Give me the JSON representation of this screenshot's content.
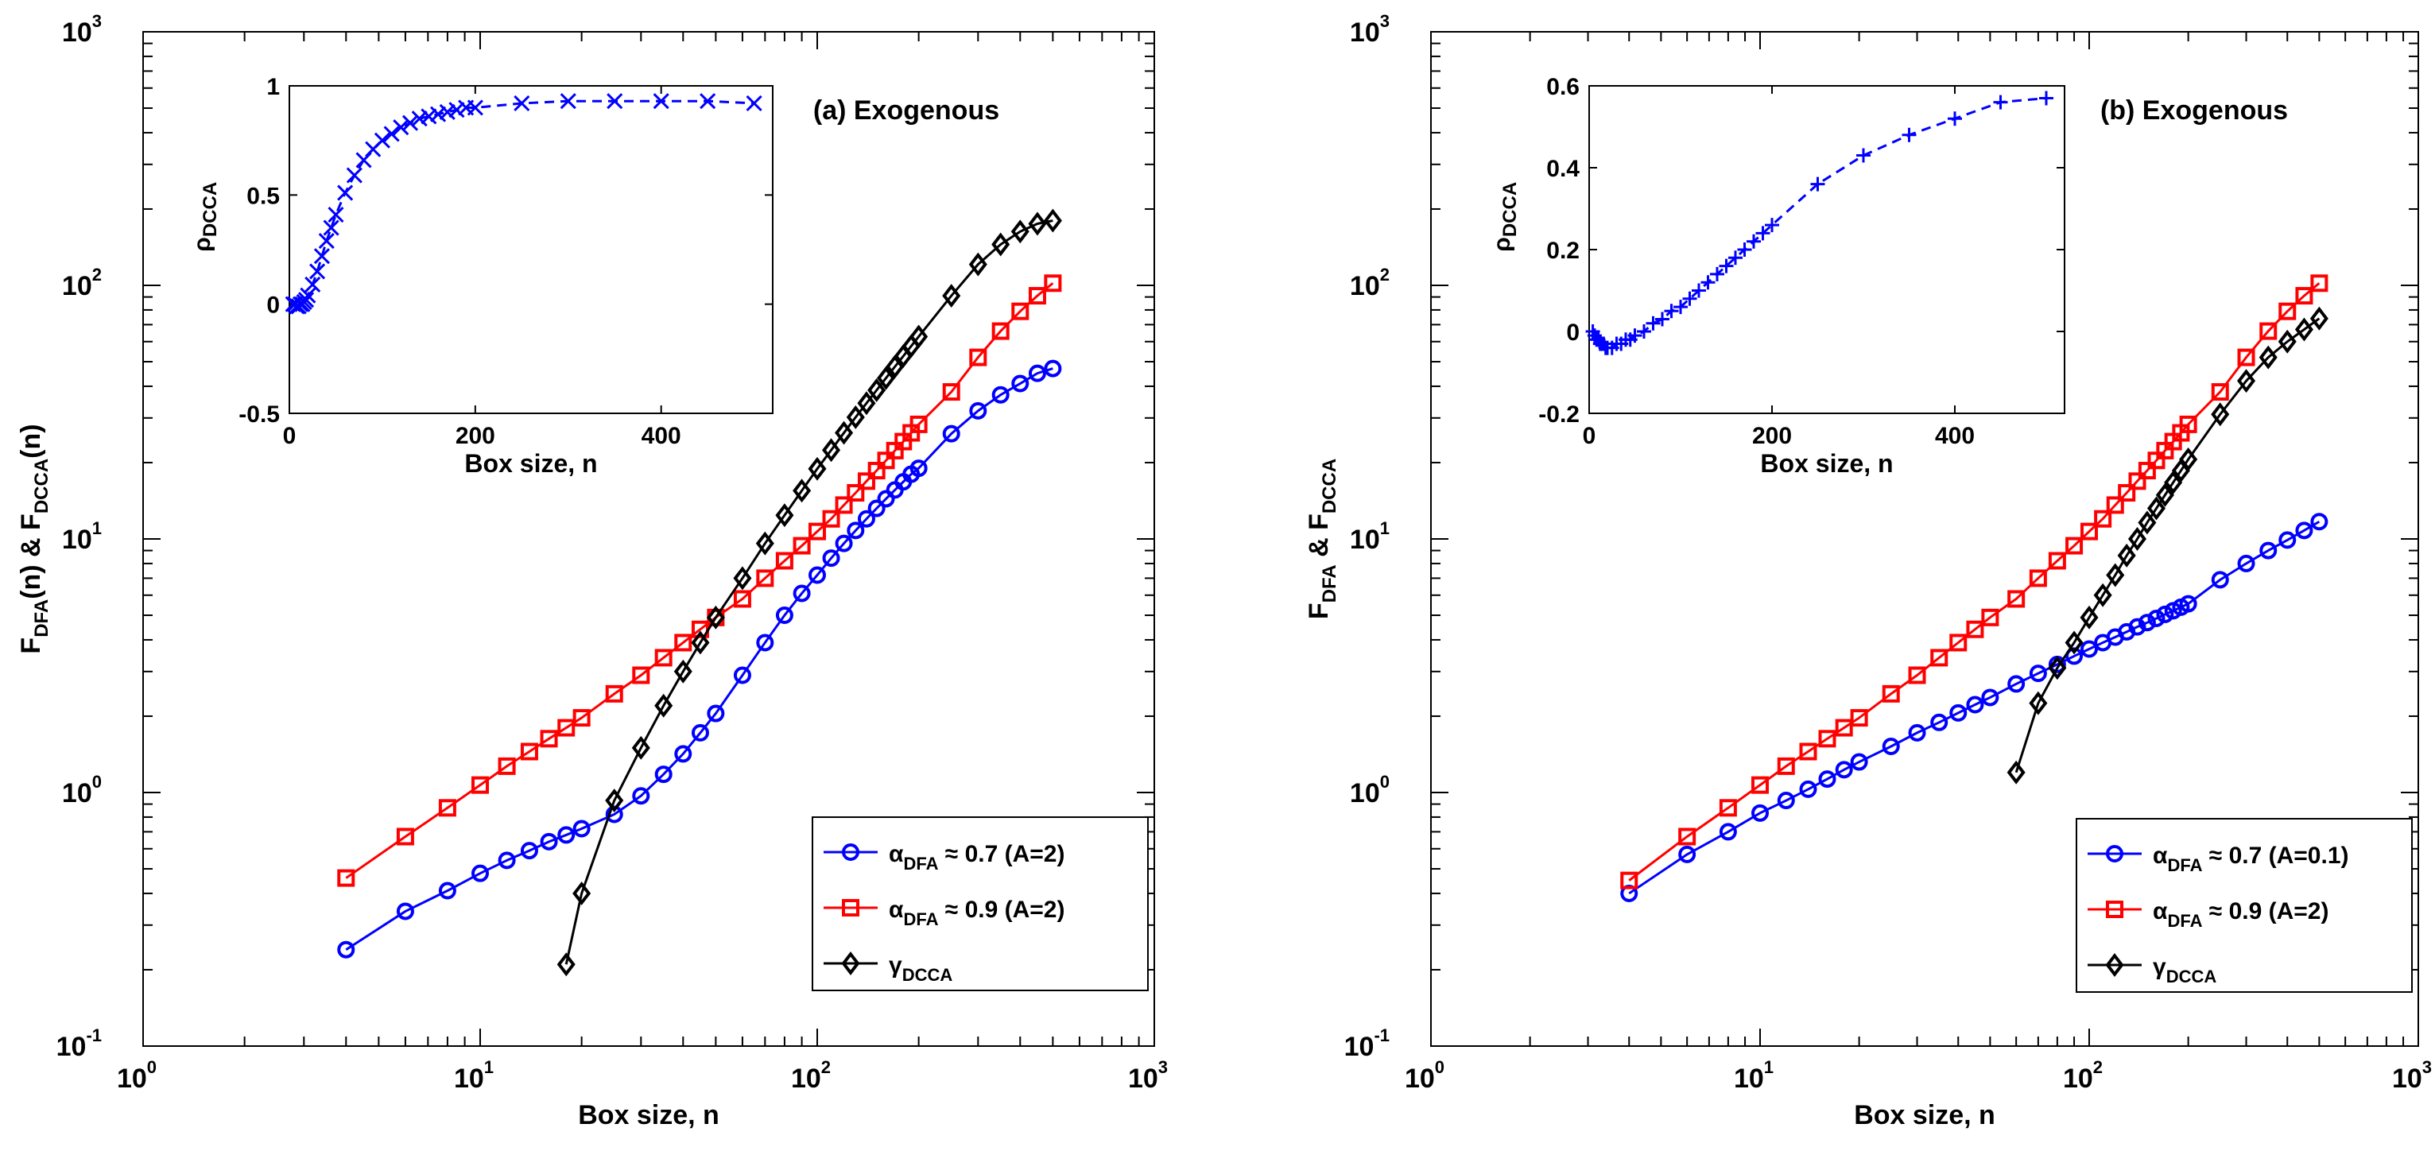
{
  "chart_data": [
    {
      "type": "line",
      "title": "(a) Exogenous",
      "xlabel": "Box size, n",
      "ylabel": {
        "a": "F",
        "b": "DFA",
        "c": "(n) & F",
        "d": "DCCA",
        "e": "(n)"
      },
      "xscale": "log",
      "yscale": "log",
      "xlim": [
        1,
        1000
      ],
      "ylim": [
        0.1,
        1000
      ],
      "x_ticks": [
        {
          "base": "10",
          "exp": "0",
          "v": 1
        },
        {
          "base": "10",
          "exp": "1",
          "v": 10
        },
        {
          "base": "10",
          "exp": "2",
          "v": 100
        },
        {
          "base": "10",
          "exp": "3",
          "v": 1000
        }
      ],
      "y_ticks": [
        {
          "base": "10",
          "exp": "-1",
          "v": 0.1
        },
        {
          "base": "10",
          "exp": "0",
          "v": 1
        },
        {
          "base": "10",
          "exp": "1",
          "v": 10
        },
        {
          "base": "10",
          "exp": "2",
          "v": 100
        },
        {
          "base": "10",
          "exp": "3",
          "v": 1000
        }
      ],
      "legend_position": "bottom-right",
      "series": [
        {
          "name": {
            "sym": "α",
            "sub": "DFA",
            "rest": " ≈ 0.7 (A=2)"
          },
          "color": "#0000ff",
          "marker": "circle",
          "x": [
            4,
            6,
            8,
            10,
            12,
            14,
            16,
            18,
            20,
            25,
            30,
            35,
            40,
            45,
            50,
            60,
            70,
            80,
            90,
            100,
            110,
            120,
            130,
            140,
            150,
            160,
            170,
            180,
            190,
            200,
            250,
            300,
            350,
            400,
            450,
            500
          ],
          "y": [
            0.24,
            0.34,
            0.41,
            0.48,
            0.54,
            0.59,
            0.64,
            0.68,
            0.72,
            0.82,
            0.97,
            1.18,
            1.42,
            1.72,
            2.05,
            2.9,
            3.9,
            5.0,
            6.1,
            7.2,
            8.4,
            9.6,
            10.8,
            12.0,
            13.2,
            14.4,
            15.6,
            16.8,
            18.0,
            19.0,
            26,
            32,
            37,
            41,
            45,
            47
          ]
        },
        {
          "name": {
            "sym": "α",
            "sub": "DFA",
            "rest": " ≈ 0.9 (A=2)"
          },
          "color": "#ff0000",
          "marker": "square",
          "x": [
            4,
            6,
            8,
            10,
            12,
            14,
            16,
            18,
            20,
            25,
            30,
            35,
            40,
            45,
            50,
            60,
            70,
            80,
            90,
            100,
            110,
            120,
            130,
            140,
            150,
            160,
            170,
            180,
            190,
            200,
            250,
            300,
            350,
            400,
            450,
            500
          ],
          "y": [
            0.46,
            0.67,
            0.87,
            1.07,
            1.27,
            1.45,
            1.63,
            1.8,
            1.97,
            2.45,
            2.9,
            3.4,
            3.9,
            4.4,
            4.9,
            5.8,
            7.0,
            8.2,
            9.4,
            10.7,
            12.0,
            13.6,
            15.2,
            16.9,
            18.6,
            20.4,
            22.3,
            24.2,
            26.2,
            28.3,
            38,
            52,
            66,
            79,
            91,
            102
          ]
        },
        {
          "name": {
            "sym": "γ",
            "sub": "DCCA",
            "rest": ""
          },
          "color": "#000000",
          "marker": "diamond",
          "x": [
            18,
            20,
            25,
            30,
            35,
            40,
            45,
            50,
            60,
            70,
            80,
            90,
            100,
            110,
            120,
            130,
            140,
            150,
            160,
            170,
            180,
            190,
            200,
            250,
            300,
            350,
            400,
            450,
            500
          ],
          "y": [
            0.21,
            0.4,
            0.93,
            1.5,
            2.2,
            3.0,
            3.9,
            4.9,
            7.0,
            9.6,
            12.4,
            15.5,
            18.9,
            22.4,
            26.2,
            30.2,
            34.3,
            38.6,
            43.1,
            47.8,
            52.6,
            57.6,
            62.8,
            91,
            121,
            145,
            163,
            175,
            180
          ]
        }
      ],
      "inset": {
        "xlabel": "Box size, n",
        "ylabel": {
          "a": "ρ",
          "b": "DCCA"
        },
        "xlim": [
          0,
          520
        ],
        "ylim": [
          -0.5,
          1
        ],
        "x_ticks": [
          {
            "label": "0",
            "v": 0
          },
          {
            "label": "200",
            "v": 200
          },
          {
            "label": "400",
            "v": 400
          }
        ],
        "y_ticks": [
          {
            "label": "-0.5",
            "v": -0.5
          },
          {
            "label": "0",
            "v": 0
          },
          {
            "label": "0.5",
            "v": 0.5
          },
          {
            "label": "1",
            "v": 1
          }
        ],
        "color": "#0000ff",
        "marker": "x",
        "x": [
          4,
          6,
          8,
          10,
          12,
          14,
          16,
          18,
          20,
          25,
          30,
          35,
          40,
          45,
          50,
          60,
          70,
          80,
          90,
          100,
          110,
          120,
          130,
          140,
          150,
          160,
          170,
          180,
          190,
          200,
          250,
          300,
          350,
          400,
          450,
          500
        ],
        "y": [
          0.0,
          0.0,
          -0.01,
          -0.01,
          0.0,
          0.0,
          0.01,
          0.02,
          0.04,
          0.09,
          0.15,
          0.22,
          0.29,
          0.35,
          0.41,
          0.51,
          0.59,
          0.66,
          0.71,
          0.75,
          0.78,
          0.81,
          0.83,
          0.85,
          0.86,
          0.87,
          0.88,
          0.89,
          0.9,
          0.9,
          0.92,
          0.93,
          0.93,
          0.93,
          0.93,
          0.92
        ]
      }
    },
    {
      "type": "line",
      "title": "(b) Exogenous",
      "xlabel": "Box size, n",
      "ylabel": {
        "a": "F",
        "b": "DFA",
        "c": " & F",
        "d": "DCCA",
        "e": ""
      },
      "xscale": "log",
      "yscale": "log",
      "xlim": [
        1,
        1000
      ],
      "ylim": [
        0.1,
        1000
      ],
      "x_ticks": [
        {
          "base": "10",
          "exp": "0",
          "v": 1
        },
        {
          "base": "10",
          "exp": "1",
          "v": 10
        },
        {
          "base": "10",
          "exp": "2",
          "v": 100
        },
        {
          "base": "10",
          "exp": "3",
          "v": 1000
        }
      ],
      "y_ticks": [
        {
          "base": "10",
          "exp": "-1",
          "v": 0.1
        },
        {
          "base": "10",
          "exp": "0",
          "v": 1
        },
        {
          "base": "10",
          "exp": "1",
          "v": 10
        },
        {
          "base": "10",
          "exp": "2",
          "v": 100
        },
        {
          "base": "10",
          "exp": "3",
          "v": 1000
        }
      ],
      "legend_position": "bottom-right",
      "series": [
        {
          "name": {
            "sym": "α",
            "sub": "DFA",
            "rest": " ≈ 0.7 (A=0.1)"
          },
          "color": "#0000ff",
          "marker": "circle",
          "x": [
            4,
            6,
            8,
            10,
            12,
            14,
            16,
            18,
            20,
            25,
            30,
            35,
            40,
            45,
            50,
            60,
            70,
            80,
            90,
            100,
            110,
            120,
            130,
            140,
            150,
            160,
            170,
            180,
            190,
            200,
            250,
            300,
            350,
            400,
            450,
            500
          ],
          "y": [
            0.4,
            0.57,
            0.7,
            0.83,
            0.93,
            1.03,
            1.13,
            1.23,
            1.32,
            1.52,
            1.72,
            1.89,
            2.06,
            2.22,
            2.37,
            2.68,
            2.95,
            3.2,
            3.45,
            3.68,
            3.9,
            4.1,
            4.3,
            4.5,
            4.68,
            4.86,
            5.04,
            5.21,
            5.38,
            5.55,
            6.9,
            8.0,
            9.0,
            9.9,
            10.8,
            11.7
          ]
        },
        {
          "name": {
            "sym": "α",
            "sub": "DFA",
            "rest": " ≈ 0.9 (A=2)"
          },
          "color": "#ff0000",
          "marker": "square",
          "x": [
            4,
            6,
            8,
            10,
            12,
            14,
            16,
            18,
            20,
            25,
            30,
            35,
            40,
            45,
            50,
            60,
            70,
            80,
            90,
            100,
            110,
            120,
            130,
            140,
            150,
            160,
            170,
            180,
            190,
            200,
            250,
            300,
            350,
            400,
            450,
            500
          ],
          "y": [
            0.45,
            0.67,
            0.87,
            1.07,
            1.27,
            1.45,
            1.63,
            1.8,
            1.97,
            2.45,
            2.9,
            3.4,
            3.9,
            4.4,
            4.9,
            5.8,
            7.0,
            8.2,
            9.4,
            10.7,
            12.0,
            13.6,
            15.2,
            16.9,
            18.6,
            20.4,
            22.3,
            24.2,
            26.2,
            28.3,
            38,
            52,
            66,
            79,
            91,
            102
          ]
        },
        {
          "name": {
            "sym": "γ",
            "sub": "DCCA",
            "rest": ""
          },
          "color": "#000000",
          "marker": "diamond",
          "x": [
            60,
            70,
            80,
            90,
            100,
            110,
            120,
            130,
            140,
            150,
            160,
            170,
            180,
            190,
            200,
            250,
            300,
            350,
            400,
            450,
            500
          ],
          "y": [
            1.2,
            2.25,
            3.1,
            3.9,
            4.9,
            6.0,
            7.2,
            8.6,
            10.0,
            11.6,
            13.2,
            14.9,
            16.7,
            18.6,
            20.6,
            31,
            42,
            52,
            60,
            67,
            74
          ]
        }
      ],
      "inset": {
        "xlabel": "Box size, n",
        "ylabel": {
          "a": "ρ",
          "b": "DCCA"
        },
        "xlim": [
          0,
          520
        ],
        "ylim": [
          -0.2,
          0.6
        ],
        "x_ticks": [
          {
            "label": "0",
            "v": 0
          },
          {
            "label": "200",
            "v": 200
          },
          {
            "label": "400",
            "v": 400
          }
        ],
        "y_ticks": [
          {
            "label": "-0.2",
            "v": -0.2
          },
          {
            "label": "0",
            "v": 0
          },
          {
            "label": "0.2",
            "v": 0.2
          },
          {
            "label": "0.4",
            "v": 0.4
          },
          {
            "label": "0.6",
            "v": 0.6
          }
        ],
        "color": "#0000ff",
        "marker": "plus",
        "x": [
          4,
          6,
          8,
          10,
          12,
          14,
          16,
          18,
          20,
          25,
          30,
          35,
          40,
          45,
          50,
          60,
          70,
          80,
          90,
          100,
          110,
          120,
          130,
          140,
          150,
          160,
          170,
          180,
          190,
          200,
          250,
          300,
          350,
          400,
          450,
          500
        ],
        "y": [
          0.0,
          -0.01,
          -0.02,
          -0.02,
          -0.03,
          -0.03,
          -0.03,
          -0.04,
          -0.04,
          -0.04,
          -0.03,
          -0.03,
          -0.02,
          -0.02,
          -0.01,
          0.0,
          0.02,
          0.03,
          0.05,
          0.06,
          0.08,
          0.1,
          0.12,
          0.14,
          0.16,
          0.18,
          0.2,
          0.22,
          0.24,
          0.26,
          0.36,
          0.43,
          0.48,
          0.52,
          0.56,
          0.57
        ]
      }
    }
  ]
}
